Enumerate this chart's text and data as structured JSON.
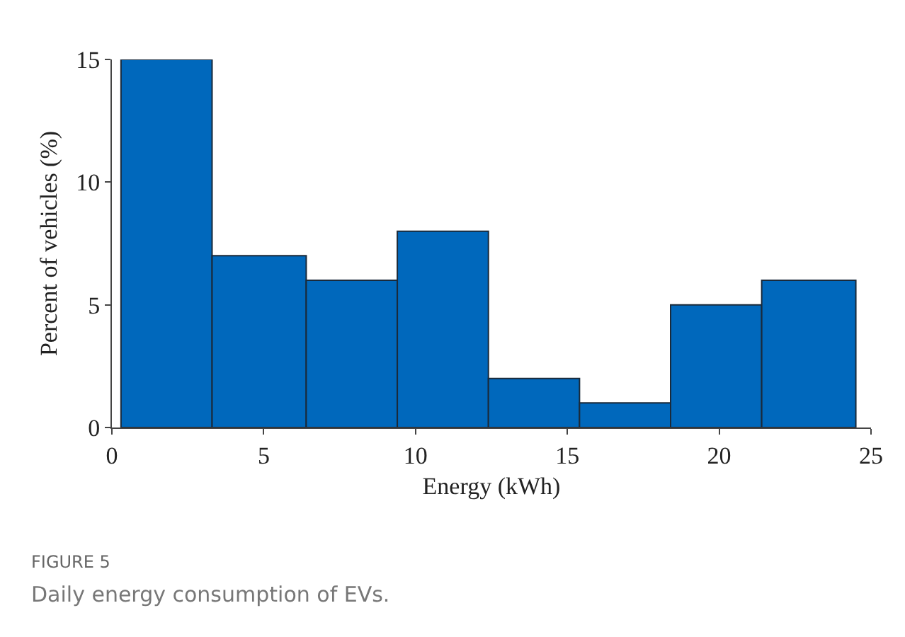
{
  "chart_data": {
    "type": "histogram",
    "xlabel": "Energy (kWh)",
    "ylabel": "Percent of vehicles (%)",
    "bins": [
      0.3,
      3.3,
      6.4,
      9.4,
      12.4,
      15.4,
      18.4,
      21.4,
      24.5
    ],
    "values": [
      15,
      7,
      6,
      8,
      2,
      1,
      5,
      6
    ],
    "color": "#0068bc",
    "xlim": [
      0,
      25
    ],
    "xticks": [
      0,
      5,
      10,
      15,
      20,
      25
    ],
    "ylim": [
      0,
      15
    ],
    "yticks": [
      0,
      5,
      10,
      15
    ],
    "grid": false,
    "annotations": [
      "FIGURE 5",
      "Daily energy consumption of EVs."
    ]
  }
}
